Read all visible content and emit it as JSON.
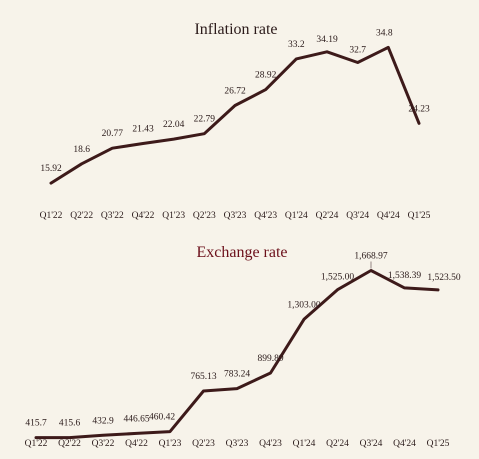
{
  "colors": {
    "line": "#3d1a1a",
    "title_top": "#2b1a1a",
    "title_bottom": "#6b0f1a"
  },
  "chart_data": [
    {
      "type": "line",
      "title": "Inflation rate",
      "categories": [
        "Q1'22",
        "Q2'22",
        "Q3'22",
        "Q4'22",
        "Q1'23",
        "Q2'23",
        "Q3'23",
        "Q4'23",
        "Q1'24",
        "Q2'24",
        "Q3'24",
        "Q4'24",
        "Q1'25"
      ],
      "values": [
        15.92,
        18.6,
        20.77,
        21.43,
        22.04,
        22.79,
        26.72,
        28.92,
        33.2,
        34.19,
        32.7,
        34.8,
        24.23
      ],
      "labels": [
        "15.92",
        "18.6",
        "20.77",
        "21.43",
        "22.04",
        "22.79",
        "26.72",
        "28.92",
        "33.2",
        "34.19",
        "32.7",
        "34.8",
        "24.23"
      ],
      "ylim": [
        8,
        40
      ],
      "grid": false,
      "legend": "none"
    },
    {
      "type": "line",
      "title": "Exchange rate",
      "categories": [
        "Q1'22",
        "Q2'22",
        "Q3'22",
        "Q4'22",
        "Q1'23",
        "Q2'23",
        "Q3'23",
        "Q4'23",
        "Q1'24",
        "Q2'24",
        "Q3'24",
        "Q4'24",
        "Q1'25"
      ],
      "values": [
        415.7,
        415.6,
        432.9,
        446.65,
        460.42,
        765.13,
        783.24,
        899.89,
        1303.0,
        1525.0,
        1668.97,
        1538.39,
        1523.5
      ],
      "labels": [
        "415.7",
        "415.6",
        "432.9",
        "446.65",
        "460.42",
        "765.13",
        "783.24",
        "899.89",
        "1,303.00",
        "1,525.00",
        "1,668.97",
        "1,538.39",
        "1,523.50"
      ],
      "ylim": [
        300,
        1800
      ],
      "grid": false,
      "legend": "none"
    }
  ]
}
